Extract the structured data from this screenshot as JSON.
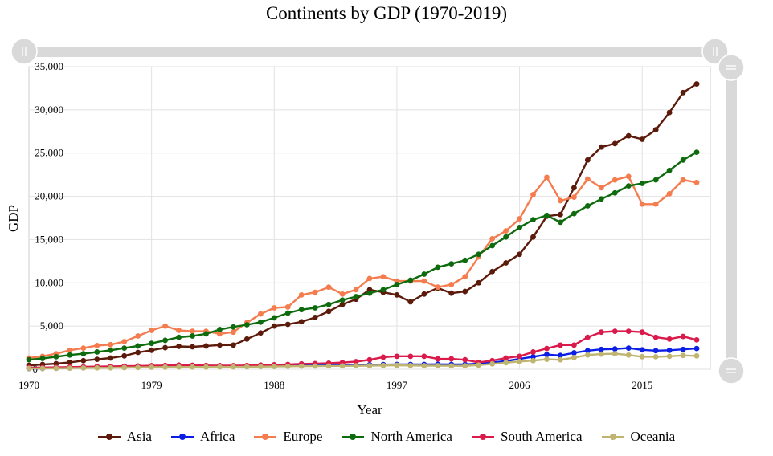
{
  "chart_data": {
    "type": "line",
    "title": "Continents by GDP (1970-2019)",
    "xlabel": "Year",
    "ylabel": "GDP",
    "xlim": [
      1970,
      2020
    ],
    "ylim": [
      0,
      35000
    ],
    "x_ticks": [
      1970,
      1979,
      1988,
      1997,
      2006,
      2015
    ],
    "y_ticks": [
      0,
      5000,
      10000,
      15000,
      20000,
      25000,
      30000,
      35000
    ],
    "y_tick_labels": [
      "0",
      "5,000",
      "10,000",
      "15,000",
      "20,000",
      "25,000",
      "30,000",
      "35,000"
    ],
    "legend_position": "bottom",
    "x": [
      1970,
      1971,
      1972,
      1973,
      1974,
      1975,
      1976,
      1977,
      1978,
      1979,
      1980,
      1981,
      1982,
      1983,
      1984,
      1985,
      1986,
      1987,
      1988,
      1989,
      1990,
      1991,
      1992,
      1993,
      1994,
      1995,
      1996,
      1997,
      1998,
      1999,
      2000,
      2001,
      2002,
      2003,
      2004,
      2005,
      2006,
      2007,
      2008,
      2009,
      2010,
      2011,
      2012,
      2013,
      2014,
      2015,
      2016,
      2017,
      2018,
      2019
    ],
    "series": [
      {
        "name": "Asia",
        "color": "#5c1a0a",
        "values": [
          450,
          550,
          650,
          800,
          1000,
          1150,
          1300,
          1550,
          1950,
          2200,
          2500,
          2650,
          2600,
          2700,
          2800,
          2800,
          3500,
          4200,
          5000,
          5200,
          5500,
          6000,
          6700,
          7500,
          8100,
          9200,
          8900,
          8600,
          7800,
          8700,
          9400,
          8800,
          9000,
          10000,
          11300,
          12300,
          13300,
          15300,
          17700,
          17900,
          21000,
          24200,
          25700,
          26100,
          27000,
          26600,
          27700,
          29700,
          32000,
          33000
        ]
      },
      {
        "name": "Africa",
        "color": "#0a1ee6",
        "values": [
          80,
          100,
          120,
          150,
          180,
          200,
          220,
          250,
          300,
          350,
          400,
          420,
          400,
          380,
          380,
          380,
          360,
          380,
          400,
          420,
          450,
          470,
          480,
          480,
          500,
          520,
          540,
          560,
          560,
          560,
          580,
          560,
          560,
          650,
          800,
          950,
          1200,
          1450,
          1700,
          1600,
          1900,
          2150,
          2300,
          2350,
          2450,
          2250,
          2150,
          2200,
          2300,
          2400
        ]
      },
      {
        "name": "Europe",
        "color": "#f47c4e",
        "values": [
          1300,
          1500,
          1800,
          2200,
          2450,
          2750,
          2850,
          3200,
          3850,
          4500,
          5000,
          4500,
          4400,
          4400,
          4100,
          4300,
          5400,
          6400,
          7100,
          7200,
          8600,
          8900,
          9500,
          8700,
          9200,
          10500,
          10700,
          10200,
          10200,
          10200,
          9500,
          9800,
          10700,
          13000,
          15100,
          16000,
          17400,
          20200,
          22200,
          19500,
          19900,
          22000,
          21000,
          21900,
          22300,
          19100,
          19100,
          20300,
          21900,
          21600
        ]
      },
      {
        "name": "North America",
        "color": "#0d6b0d",
        "values": [
          1100,
          1250,
          1450,
          1650,
          1800,
          2000,
          2200,
          2450,
          2700,
          3000,
          3350,
          3700,
          3850,
          4100,
          4600,
          4900,
          5150,
          5450,
          5950,
          6500,
          6900,
          7100,
          7500,
          8000,
          8400,
          8800,
          9200,
          9800,
          10300,
          11000,
          11800,
          12200,
          12600,
          13300,
          14300,
          15300,
          16400,
          17300,
          17800,
          17000,
          18000,
          18900,
          19700,
          20400,
          21200,
          21500,
          21900,
          23000,
          24200,
          25100
        ]
      },
      {
        "name": "South America",
        "color": "#d91a4a",
        "values": [
          180,
          200,
          220,
          250,
          280,
          310,
          330,
          360,
          380,
          410,
          440,
          480,
          460,
          440,
          430,
          420,
          440,
          480,
          520,
          560,
          620,
          660,
          700,
          780,
          880,
          1100,
          1400,
          1500,
          1500,
          1500,
          1200,
          1200,
          1100,
          800,
          1000,
          1300,
          1500,
          2000,
          2400,
          2800,
          2800,
          3700,
          4300,
          4400,
          4400,
          4300,
          3700,
          3500,
          3800,
          3400
        ]
      },
      {
        "name": "Oceania",
        "color": "#bfb470",
        "values": [
          90,
          100,
          110,
          130,
          150,
          160,
          170,
          190,
          210,
          230,
          250,
          260,
          260,
          260,
          270,
          270,
          280,
          300,
          320,
          340,
          360,
          370,
          380,
          390,
          400,
          420,
          440,
          460,
          440,
          420,
          410,
          400,
          400,
          480,
          620,
          760,
          900,
          1000,
          1150,
          1100,
          1350,
          1650,
          1750,
          1800,
          1650,
          1450,
          1450,
          1500,
          1600,
          1550
        ]
      }
    ]
  }
}
